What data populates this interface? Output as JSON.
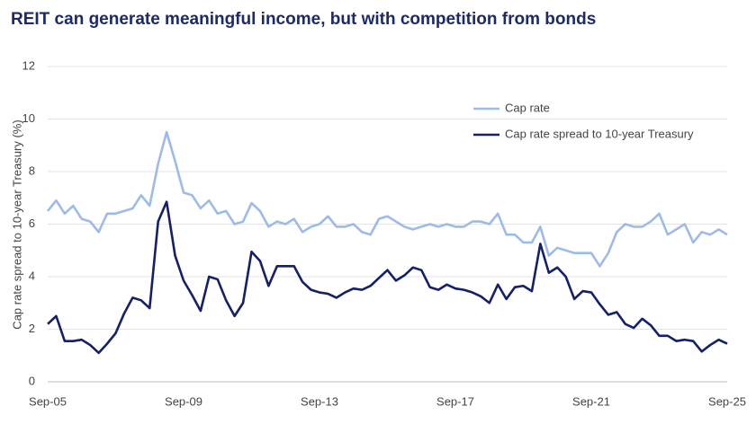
{
  "chart_data": {
    "type": "line",
    "title": "REIT can generate meaningful income, but with competition from bonds",
    "y_label": "Cap rate spread to 10-year Treasury (%)",
    "categories": [
      "Sep-05",
      null,
      null,
      null,
      null,
      null,
      null,
      null,
      null,
      null,
      null,
      null,
      null,
      null,
      null,
      null,
      "Sep-09",
      null,
      null,
      null,
      null,
      null,
      null,
      null,
      null,
      null,
      null,
      null,
      null,
      null,
      null,
      null,
      "Sep-13",
      null,
      null,
      null,
      null,
      null,
      null,
      null,
      null,
      null,
      null,
      null,
      null,
      null,
      null,
      null,
      "Sep-17",
      null,
      null,
      null,
      null,
      null,
      null,
      null,
      null,
      null,
      null,
      null,
      null,
      null,
      null,
      null,
      "Sep-21",
      null,
      null,
      null,
      null,
      null,
      null,
      null,
      null,
      null,
      null,
      null,
      null,
      null,
      null,
      null,
      "Sep-25"
    ],
    "series": [
      {
        "name": "Cap rate",
        "color": "#9dbbea",
        "values": [
          6.5,
          6.9,
          6.4,
          6.7,
          6.2,
          6.1,
          5.7,
          6.4,
          6.4,
          6.5,
          6.6,
          7.1,
          6.7,
          8.3,
          9.5,
          8.4,
          7.2,
          7.1,
          6.6,
          6.9,
          6.4,
          6.5,
          6.0,
          6.1,
          6.8,
          6.5,
          5.9,
          6.1,
          6.0,
          6.2,
          5.7,
          5.9,
          6.0,
          6.3,
          5.9,
          5.9,
          6.0,
          5.7,
          5.6,
          6.2,
          6.3,
          6.1,
          5.9,
          5.8,
          5.9,
          6.0,
          5.9,
          6.0,
          5.9,
          5.9,
          6.1,
          6.1,
          6.0,
          6.4,
          5.6,
          5.6,
          5.3,
          5.3,
          5.9,
          4.8,
          5.1,
          5.0,
          4.9,
          4.9,
          4.9,
          4.4,
          4.9,
          5.7,
          6.0,
          5.9,
          5.9,
          6.1,
          6.4,
          5.6,
          5.8,
          6.0,
          5.3,
          5.7,
          5.6,
          5.8,
          5.6
        ]
      },
      {
        "name": "Cap rate spread to 10-year Treasury",
        "color": "#14206b",
        "values": [
          2.2,
          2.5,
          1.55,
          1.55,
          1.6,
          1.4,
          1.1,
          1.45,
          1.85,
          2.6,
          3.2,
          3.1,
          2.8,
          6.1,
          6.85,
          4.8,
          3.85,
          3.3,
          2.7,
          4.0,
          3.9,
          3.1,
          2.5,
          3.0,
          4.95,
          4.6,
          3.65,
          4.4,
          4.4,
          4.4,
          3.8,
          3.5,
          3.4,
          3.35,
          3.2,
          3.4,
          3.55,
          3.5,
          3.65,
          3.95,
          4.25,
          3.85,
          4.05,
          4.35,
          4.25,
          3.6,
          3.5,
          3.7,
          3.55,
          3.5,
          3.4,
          3.25,
          3.0,
          3.7,
          3.15,
          3.6,
          3.65,
          3.45,
          5.25,
          4.15,
          4.35,
          4.0,
          3.15,
          3.45,
          3.4,
          2.95,
          2.55,
          2.65,
          2.2,
          2.05,
          2.4,
          2.15,
          1.75,
          1.75,
          1.55,
          1.6,
          1.55,
          1.15,
          1.4,
          1.6,
          1.45
        ]
      }
    ],
    "ylim": [
      0,
      12
    ],
    "yticks": [
      0,
      2,
      4,
      6,
      8,
      10,
      12
    ],
    "grid": true
  }
}
